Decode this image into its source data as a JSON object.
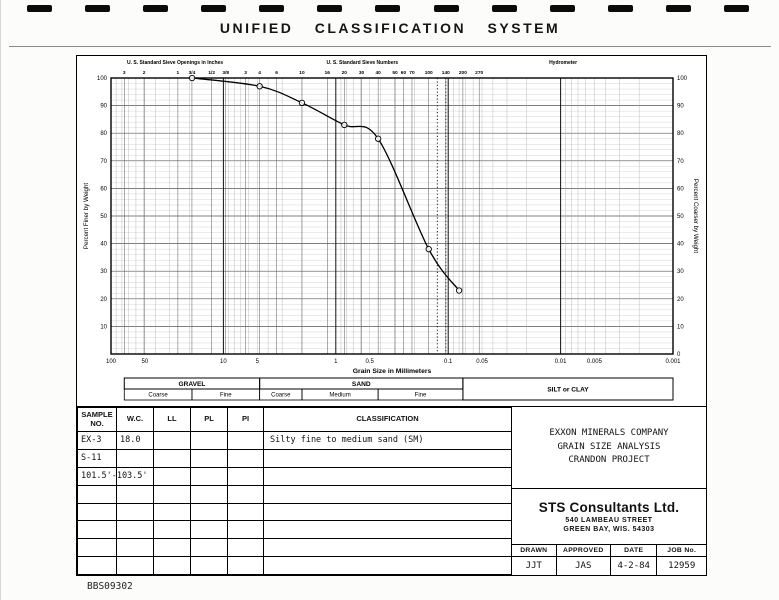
{
  "page": {
    "title": "UNIFIED CLASSIFICATION SYSTEM",
    "doc_number": "BBS09302",
    "punch_count": 13
  },
  "chart_data": {
    "type": "line",
    "title": "",
    "xlabel": "Grain Size in Millimeters",
    "ylabel_left": "Percent Finer by Weight",
    "ylabel_right": "Percent Coarser by Weight",
    "x_scale": "log",
    "xmax": 100,
    "xmin": 0.001,
    "ylim": [
      0,
      100
    ],
    "grid": true,
    "x_tick_values": [
      100,
      50,
      10,
      5,
      1,
      0.5,
      0.1,
      0.05,
      0.01,
      0.005,
      0.001
    ],
    "x_tick_labels": [
      "100",
      "50",
      "10",
      "5",
      "1",
      "0.5",
      "0.1",
      "0.05",
      "0.01",
      "0.005",
      "0.001"
    ],
    "y_ticks_left": [
      100,
      90,
      80,
      70,
      60,
      50,
      40,
      30,
      20,
      10
    ],
    "y_ticks_right": [
      0,
      10,
      20,
      30,
      40,
      50,
      60,
      70,
      80,
      90,
      100
    ],
    "top_axis": {
      "inches_label": "U. S. Standard Sieve Openings in Inches",
      "numbers_label": "U. S. Standard Sieve Numbers",
      "hydrometer_label": "Hydrometer",
      "inch_ticks": [
        {
          "label": "3",
          "mm": 76.2
        },
        {
          "label": "2",
          "mm": 50.8
        },
        {
          "label": "1",
          "mm": 25.4
        },
        {
          "label": "3/4",
          "mm": 19.05
        },
        {
          "label": "1/2",
          "mm": 12.7
        },
        {
          "label": "3/8",
          "mm": 9.53
        }
      ],
      "number_ticks": [
        {
          "label": "3",
          "mm": 6.35
        },
        {
          "label": "4",
          "mm": 4.76
        },
        {
          "label": "6",
          "mm": 3.36
        },
        {
          "label": "10",
          "mm": 2.0
        },
        {
          "label": "16",
          "mm": 1.19
        },
        {
          "label": "20",
          "mm": 0.84
        },
        {
          "label": "30",
          "mm": 0.59
        },
        {
          "label": "40",
          "mm": 0.42
        },
        {
          "label": "50",
          "mm": 0.297
        },
        {
          "label": "60",
          "mm": 0.25
        },
        {
          "label": "70",
          "mm": 0.21
        },
        {
          "label": "100",
          "mm": 0.149
        },
        {
          "label": "140",
          "mm": 0.105
        },
        {
          "label": "200",
          "mm": 0.074
        },
        {
          "label": "270",
          "mm": 0.053
        }
      ]
    },
    "dashed_lines_mm": [
      0.125,
      0.105
    ],
    "series": [
      {
        "name": "EX-3",
        "points": [
          [
            19,
            100
          ],
          [
            4.76,
            97
          ],
          [
            2.0,
            91
          ],
          [
            0.84,
            83
          ],
          [
            0.42,
            78
          ],
          [
            0.149,
            38
          ],
          [
            0.08,
            23
          ]
        ]
      }
    ],
    "bands": {
      "row1": [
        {
          "label": "GRAVEL",
          "from": 76.2,
          "to": 4.76
        },
        {
          "label": "SAND",
          "from": 4.76,
          "to": 0.074
        },
        {
          "label": "SILT or CLAY",
          "from": 0.074,
          "to": 0.001,
          "rowspan": 2
        }
      ],
      "row2": [
        {
          "label": "Coarse",
          "from": 76.2,
          "to": 19.05
        },
        {
          "label": "Fine",
          "from": 19.05,
          "to": 4.76
        },
        {
          "label": "Coarse",
          "from": 4.76,
          "to": 2.0
        },
        {
          "label": "Medium",
          "from": 2.0,
          "to": 0.42
        },
        {
          "label": "Fine",
          "from": 0.42,
          "to": 0.074
        }
      ]
    }
  },
  "table": {
    "headers": [
      "SAMPLE NO.",
      "W.C.",
      "LL",
      "PL",
      "PI",
      "CLASSIFICATION"
    ],
    "rows": [
      [
        "EX-3",
        "18.0",
        "",
        "",
        "",
        "Silty fine to medium sand (SM)"
      ],
      [
        "S-11",
        "",
        "",
        "",
        "",
        ""
      ],
      [
        "101.5'-103.5'",
        "",
        "",
        "",
        "",
        ""
      ],
      [
        "",
        "",
        "",
        "",
        "",
        ""
      ],
      [
        "",
        "",
        "",
        "",
        "",
        ""
      ],
      [
        "",
        "",
        "",
        "",
        "",
        ""
      ],
      [
        "",
        "",
        "",
        "",
        "",
        ""
      ],
      [
        "",
        "",
        "",
        "",
        "",
        ""
      ]
    ]
  },
  "project": {
    "lines": [
      "EXXON MINERALS COMPANY",
      "GRAIN SIZE ANALYSIS",
      "CRANDON PROJECT"
    ]
  },
  "firm": {
    "name": "STS Consultants Ltd.",
    "address1": "540 LAMBEAU STREET",
    "address2": "GREEN BAY, WIS. 54303"
  },
  "approval": {
    "headers": [
      "DRAWN",
      "APPROVED",
      "DATE",
      "JOB No."
    ],
    "values": [
      "JJT",
      "JAS",
      "4-2-84",
      "12959"
    ]
  }
}
